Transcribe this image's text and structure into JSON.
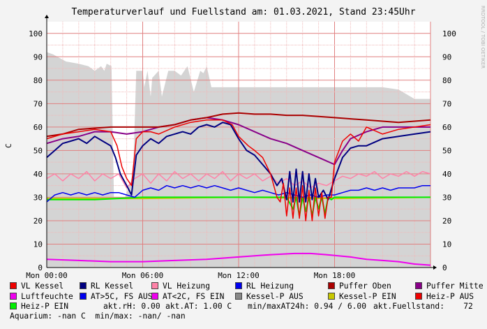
{
  "chart_data": {
    "type": "line",
    "title": "Temperaturverlauf und Fuellstand am: 01.03.2021, Stand 23:45Uhr",
    "ylabel": "C",
    "watermark": "RRDTOOL / TOBI OETIKER",
    "ylim": [
      0,
      105
    ],
    "xlim": [
      0,
      24
    ],
    "yticks": [
      0,
      10,
      20,
      30,
      40,
      50,
      60,
      70,
      80,
      90,
      100
    ],
    "xticks": [
      {
        "x": 0,
        "label": "Mon 00:00"
      },
      {
        "x": 6,
        "label": "Mon 06:00"
      },
      {
        "x": 12,
        "label": "Mon 12:00"
      },
      {
        "x": 18,
        "label": "Mon 18:00"
      }
    ],
    "grid": true,
    "fill_series": {
      "name": "Kessel-P AUS",
      "color": "#d4d4d4",
      "x": [
        0,
        0.4,
        1.2,
        2.0,
        2.6,
        3.0,
        3.4,
        3.6,
        3.75,
        4.05,
        4.2,
        4.9,
        5.4,
        5.6,
        6.0,
        6.1,
        6.3,
        6.5,
        6.6,
        7.0,
        7.2,
        7.6,
        8.0,
        8.4,
        8.8,
        9.2,
        9.6,
        9.8,
        10.0,
        10.3,
        10.5,
        11.0,
        12.0,
        13.0,
        14.0,
        15.0,
        15.5,
        16.0,
        17.0,
        18.0,
        19.0,
        20.0,
        21.0,
        22.0,
        23.0,
        24.0
      ],
      "values": [
        92,
        91,
        88,
        87,
        86,
        84,
        86,
        84,
        87,
        86,
        30,
        30,
        40,
        84,
        84,
        77,
        84,
        73,
        81,
        84,
        73,
        84,
        84,
        82,
        86,
        75,
        84,
        83,
        86,
        77,
        77,
        77,
        77,
        77,
        77,
        77,
        77,
        77,
        77,
        77,
        77,
        77,
        77,
        76,
        72,
        72
      ]
    },
    "series": [
      {
        "name": "VL Kessel",
        "color": "#ee0000",
        "width": 1.5,
        "x": [
          0,
          1.0,
          2.0,
          3.0,
          4.0,
          4.4,
          4.7,
          5.0,
          5.3,
          5.6,
          6.0,
          6.5,
          7.0,
          8.0,
          9.0,
          10.0,
          11.0,
          11.6,
          12.0,
          12.6,
          13.0,
          13.5,
          14.0,
          14.4,
          14.6,
          14.8,
          15.0,
          15.2,
          15.4,
          15.6,
          15.8,
          16.0,
          16.2,
          16.4,
          16.6,
          16.8,
          17.0,
          17.2,
          17.4,
          17.6,
          17.8,
          18.0,
          18.5,
          19.0,
          19.5,
          20.0,
          21.0,
          22.0,
          23.0,
          24.0
        ],
        "values": [
          55,
          57,
          58,
          59,
          58,
          52,
          43,
          38,
          35,
          55,
          58,
          58,
          57,
          60,
          62,
          63,
          63,
          61,
          56,
          52,
          50,
          47,
          40,
          30,
          28,
          36,
          22,
          34,
          21,
          34,
          21,
          35,
          20,
          33,
          20,
          34,
          22,
          32,
          21,
          30,
          30,
          45,
          54,
          57,
          54,
          60,
          57,
          59,
          60,
          61
        ]
      },
      {
        "name": "RL Kessel",
        "color": "#000080",
        "width": 2,
        "x": [
          0,
          0.5,
          1.0,
          1.5,
          2.0,
          2.5,
          3.0,
          3.5,
          4.0,
          4.3,
          4.6,
          5.0,
          5.3,
          5.6,
          6.0,
          6.5,
          7.0,
          7.5,
          8.0,
          8.5,
          9.0,
          9.5,
          10.0,
          10.5,
          11.0,
          11.5,
          12.0,
          12.5,
          13.0,
          13.5,
          14.0,
          14.4,
          14.7,
          15.0,
          15.2,
          15.4,
          15.6,
          15.8,
          16.0,
          16.2,
          16.4,
          16.6,
          16.8,
          17.0,
          17.3,
          17.6,
          18.0,
          18.5,
          19.0,
          19.5,
          20.0,
          21.0,
          22.0,
          23.0,
          24.0
        ],
        "values": [
          47,
          50,
          53,
          54,
          55,
          53,
          56,
          54,
          52,
          47,
          40,
          35,
          31,
          48,
          52,
          55,
          53,
          56,
          57,
          58,
          57,
          60,
          61,
          60,
          62,
          61,
          55,
          50,
          48,
          44,
          40,
          35,
          38,
          29,
          41,
          28,
          42,
          28,
          41,
          28,
          40,
          29,
          38,
          30,
          33,
          29,
          38,
          47,
          51,
          52,
          52,
          55,
          56,
          57,
          58
        ]
      },
      {
        "name": "VL Heizung",
        "color": "#ff82a8",
        "width": 1.5,
        "x": [
          0,
          0.5,
          1.0,
          1.5,
          2.0,
          2.5,
          3.0,
          3.5,
          4.0,
          4.5,
          5.0,
          5.5,
          6.0,
          6.5,
          7.0,
          7.5,
          8.0,
          8.5,
          9.0,
          9.5,
          10.0,
          10.5,
          11.0,
          11.5,
          12.0,
          12.5,
          13.0,
          13.5,
          14.0,
          14.5,
          15.0,
          15.5,
          16.0,
          16.5,
          17.0,
          17.5,
          18.0,
          18.5,
          19.0,
          19.5,
          20.0,
          20.5,
          21.0,
          21.5,
          22.0,
          22.5,
          23.0,
          23.5,
          24.0
        ],
        "values": [
          38,
          40,
          37,
          40,
          38,
          41,
          37,
          40,
          38,
          40,
          34,
          38,
          40,
          36,
          40,
          37,
          41,
          38,
          40,
          37,
          40,
          38,
          41,
          37,
          40,
          38,
          40,
          37,
          39,
          36,
          38,
          35,
          37,
          34,
          36,
          35,
          37,
          39,
          38,
          40,
          39,
          41,
          38,
          40,
          39,
          41,
          39,
          41,
          40
        ]
      },
      {
        "name": "RL Heizung",
        "color": "#0000ee",
        "width": 1.5,
        "x": [
          0,
          0.5,
          1.0,
          1.5,
          2.0,
          2.5,
          3.0,
          3.5,
          4.0,
          4.5,
          5.0,
          5.5,
          6.0,
          6.5,
          7.0,
          7.5,
          8.0,
          8.5,
          9.0,
          9.5,
          10.0,
          10.5,
          11.0,
          11.5,
          12.0,
          12.5,
          13.0,
          13.5,
          14.0,
          14.5,
          15.0,
          15.5,
          16.0,
          16.5,
          17.0,
          17.5,
          18.0,
          18.5,
          19.0,
          19.5,
          20.0,
          20.5,
          21.0,
          21.5,
          22.0,
          22.5,
          23.0,
          23.5,
          24.0
        ],
        "values": [
          28,
          31,
          32,
          31,
          32,
          31,
          32,
          31,
          32,
          32,
          31,
          30,
          33,
          34,
          33,
          35,
          34,
          35,
          34,
          35,
          34,
          35,
          34,
          33,
          34,
          33,
          32,
          33,
          32,
          31,
          32,
          31,
          30,
          31,
          30,
          31,
          31,
          32,
          33,
          33,
          34,
          33,
          34,
          33,
          34,
          34,
          34,
          35,
          35
        ]
      },
      {
        "name": "Puffer Oben",
        "color": "#aa0000",
        "width": 2,
        "x": [
          0,
          1.0,
          2.0,
          3.0,
          4.0,
          5.0,
          6.0,
          7.0,
          8.0,
          9.0,
          10.0,
          11.0,
          12.0,
          13.0,
          14.0,
          15.0,
          16.0,
          17.0,
          18.0,
          19.0,
          20.0,
          21.0,
          22.0,
          23.0,
          24.0
        ],
        "values": [
          56,
          57,
          59,
          59.5,
          60,
          60,
          60,
          60,
          61,
          63,
          64,
          65.5,
          66,
          65.5,
          65.5,
          65,
          65,
          64.5,
          64,
          63.5,
          63,
          62.5,
          62,
          62.5,
          63
        ]
      },
      {
        "name": "Puffer Mitte",
        "color": "#880088",
        "width": 2,
        "x": [
          0,
          1.0,
          2.0,
          3.0,
          4.0,
          5.0,
          6.0,
          7.0,
          8.0,
          9.0,
          10.0,
          11.0,
          12.0,
          13.0,
          14.0,
          15.0,
          16.0,
          17.0,
          18.0,
          18.5,
          19.0,
          20.0,
          21.0,
          22.0,
          23.0,
          24.0
        ],
        "values": [
          53,
          55,
          56,
          58,
          58,
          57,
          58,
          60,
          61,
          63,
          64,
          63,
          61,
          58,
          55,
          53,
          50,
          47,
          44,
          50,
          55,
          58,
          60,
          60,
          60,
          60
        ]
      },
      {
        "name": "Luftfeuchte",
        "color": "#ee00ee",
        "width": 2,
        "x": [
          0,
          2.0,
          4.0,
          6.0,
          8.0,
          10.0,
          12.0,
          14.0,
          15.5,
          16.5,
          17.5,
          19.0,
          20.0,
          21.0,
          22.0,
          23.0,
          24.0
        ],
        "values": [
          3.5,
          3.0,
          2.5,
          2.5,
          3.0,
          3.5,
          4.5,
          5.5,
          6.0,
          6.0,
          5.5,
          4.5,
          3.5,
          3.0,
          2.5,
          1.5,
          1.0
        ]
      },
      {
        "name": "AT>5C, FS AUS",
        "color": "#0000ee",
        "width": 1,
        "x": [],
        "values": []
      },
      {
        "name": "AT<2C, FS EIN",
        "color": "#ee00ee",
        "width": 1,
        "x": [],
        "values": []
      },
      {
        "name": "Kessel-P EIN",
        "color": "#c8c800",
        "width": 2,
        "x": [
          0,
          6.0,
          12.0,
          18.0,
          24.0
        ],
        "values": [
          29.5,
          29.5,
          30,
          29.5,
          30
        ]
      },
      {
        "name": "Heiz-P AUS",
        "color": "#ee0000",
        "width": 1,
        "x": [],
        "values": []
      },
      {
        "name": "Heiz-P EIN",
        "color": "#00ee00",
        "width": 2,
        "x": [
          0,
          3.0,
          6.0,
          9.0,
          12.0,
          15.0,
          15.4,
          15.6,
          15.8,
          16.0,
          16.2,
          16.4,
          16.6,
          16.8,
          17.0,
          17.2,
          17.4,
          17.6,
          17.8,
          18.0,
          21.0,
          24.0
        ],
        "values": [
          29,
          29,
          30,
          30,
          30,
          30,
          25,
          30,
          22,
          30,
          24,
          30,
          22,
          30,
          25,
          30,
          23,
          30,
          29,
          30,
          30,
          30
        ]
      }
    ]
  },
  "legend": {
    "rows": [
      [
        {
          "label": "VL Kessel",
          "color": "#ee0000"
        },
        {
          "label": "RL Kessel",
          "color": "#000080"
        },
        {
          "label": "VL Heizung",
          "color": "#ff82a8"
        },
        {
          "label": "RL Heizung",
          "color": "#0000ee"
        },
        {
          "label": "Puffer Oben",
          "color": "#aa0000"
        },
        {
          "label": "Puffer Mitte",
          "color": "#880088"
        }
      ],
      [
        {
          "label": "Luftfeuchte",
          "color": "#ee00ee"
        },
        {
          "label": "AT>5C, FS AUS",
          "color": "#0000ee"
        },
        {
          "label": "AT<2C, FS EIN",
          "color": "#ee00ee"
        },
        {
          "label": "Kessel-P AUS",
          "color": "#888888"
        },
        {
          "label": "Kessel-P EIN",
          "color": "#c8c800"
        },
        {
          "label": "Heiz-P AUS",
          "color": "#ee0000"
        }
      ],
      [
        {
          "label": "Heiz-P EIN",
          "color": "#00ee00"
        }
      ]
    ]
  },
  "status": {
    "akt_rh": "akt.rH: 0.00",
    "akt_at": "akt.AT: 1.00 C",
    "minmax_at24h": "min/maxAT24h: 0.94 / 6.00",
    "akt_fuellstand": "akt.Fuellstand:    72"
  },
  "footer": {
    "aquarium": "Aquarium: -nan C  min/max: -nan/ -nan"
  }
}
